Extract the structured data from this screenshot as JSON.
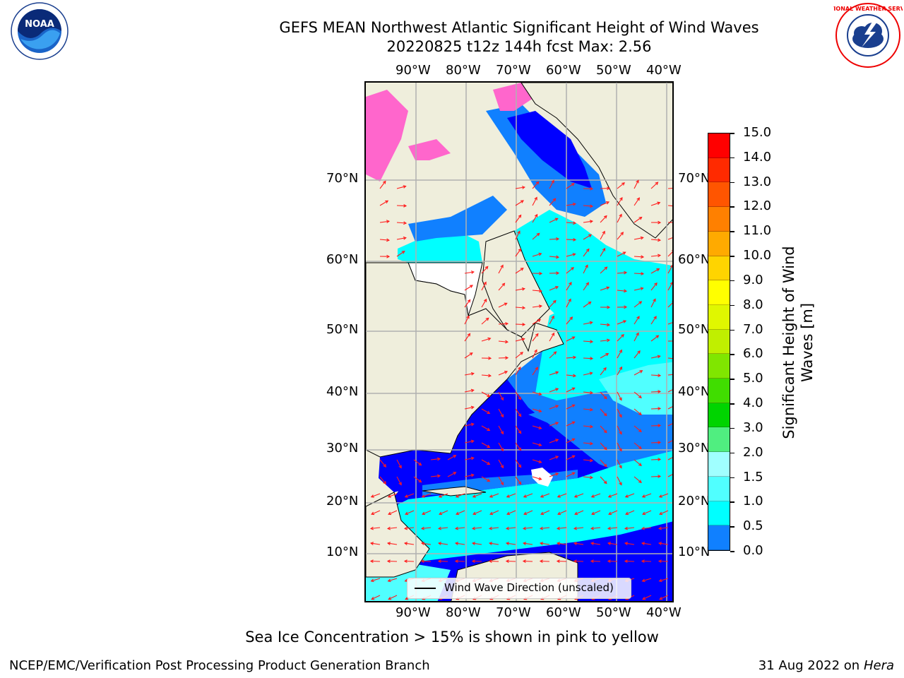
{
  "header": {
    "title_line1": "GEFS MEAN Northwest Atlantic Significant Height of Wind Waves",
    "title_line2": "20220825 t12z 144h fcst   Max: 2.56"
  },
  "logos": {
    "left": "NOAA",
    "left_ring_text": "NATIONAL OCEANIC AND ATMOSPHERIC ADMINISTRATION · U.S. DEPARTMENT OF COMMERCE",
    "right_ring_text": "NATIONAL WEATHER SERVICE"
  },
  "map": {
    "lon_labels": [
      "90°W",
      "80°W",
      "70°W",
      "60°W",
      "50°W",
      "40°W"
    ],
    "lat_labels": [
      "70°N",
      "60°N",
      "50°N",
      "40°N",
      "30°N",
      "20°N",
      "10°N"
    ]
  },
  "legend": {
    "label": "Wind Wave Direction (unscaled)"
  },
  "colorbar": {
    "title_line1": "Significant Height of Wind",
    "title_line2": "Waves [m]",
    "ticks": [
      "15.0",
      "14.0",
      "13.0",
      "12.0",
      "11.0",
      "10.0",
      "9.0",
      "8.0",
      "7.0",
      "6.0",
      "5.0",
      "4.0",
      "3.0",
      "2.0",
      "1.5",
      "1.0",
      "0.5",
      "0.0"
    ],
    "colors": [
      "#ff0000",
      "#ff2a00",
      "#ff5500",
      "#ff8000",
      "#ffaa00",
      "#ffd400",
      "#ffff00",
      "#e0f700",
      "#c0ef00",
      "#80e600",
      "#40dd00",
      "#00d400",
      "#50ee80",
      "#a0ffff",
      "#50ffff",
      "#00ffff",
      "#1080ff",
      "#0000ff"
    ]
  },
  "footer": {
    "note": "Sea Ice Concentration > 15% is shown in pink to yellow",
    "credit": "NCEP/EMC/Verification Post Processing Product Generation Branch",
    "date": "31 Aug 2022 on",
    "machine": "Hera"
  }
}
